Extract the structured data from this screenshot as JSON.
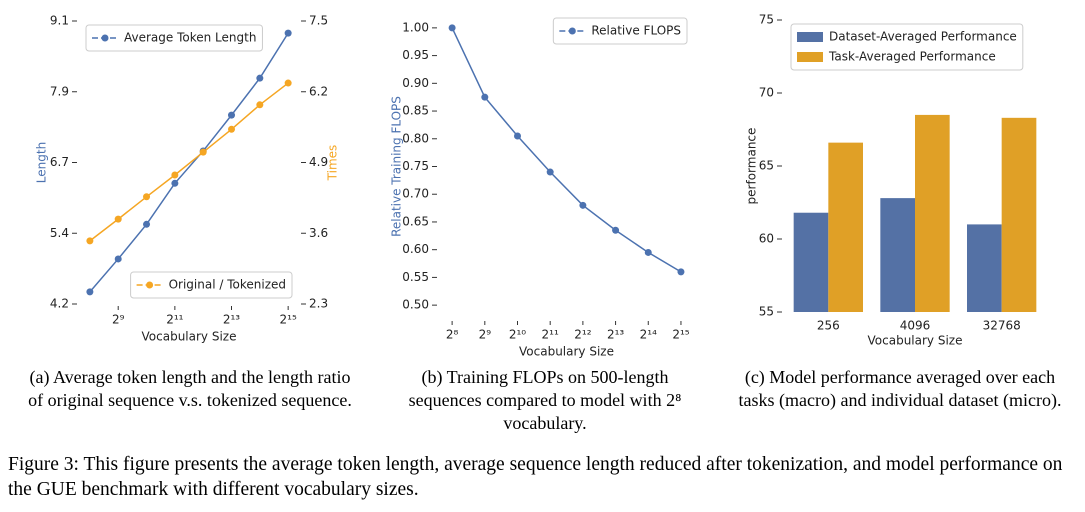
{
  "chart_data": [
    {
      "type": "line",
      "caption": "(a) Average token length and the length ratio of original sequence v.s. tokenized sequence.",
      "xlabel": "Vocabulary Size",
      "ylabel": "Length",
      "y2label": "Times",
      "x": [
        256,
        512,
        1024,
        2048,
        4096,
        8192,
        16384,
        32768
      ],
      "xscale": "log2",
      "xlim": [
        201,
        41700
      ],
      "xticks": [
        {
          "value": 512,
          "label": "2⁹"
        },
        {
          "value": 2048,
          "label": "2¹¹"
        },
        {
          "value": 8192,
          "label": "2¹³"
        },
        {
          "value": 32768,
          "label": "2¹⁵"
        }
      ],
      "ylim": [
        4.2,
        9.1
      ],
      "yticks": [
        4.2,
        {
          "value": 5.425,
          "label": "5.4"
        },
        {
          "value": 6.65,
          "label": "6.7"
        },
        {
          "value": 7.875,
          "label": "7.9"
        },
        9.1
      ],
      "y2lim": [
        2.3,
        7.5
      ],
      "y2ticks": [
        2.3,
        3.6,
        4.9,
        6.2,
        7.5
      ],
      "grid": false,
      "series": [
        {
          "name": "Average Token Length",
          "color": "#4c72b0",
          "legend": "upper left",
          "values": [
            4.41,
            4.98,
            5.58,
            6.29,
            6.85,
            7.47,
            8.11,
            8.89
          ]
        },
        {
          "name": "Original / Tokenized",
          "color": "#f5a623",
          "legend": "lower right",
          "axis": "y2",
          "values": [
            3.46,
            3.86,
            4.27,
            4.67,
            5.09,
            5.51,
            5.96,
            6.36
          ]
        }
      ]
    },
    {
      "type": "line",
      "caption": "(b) Training FLOPs on 500-length sequences compared to model with 2⁸ vocabulary.",
      "xlabel": "Vocabulary Size",
      "ylabel": "Relative Training FLOPS",
      "x": [
        256,
        512,
        1024,
        2048,
        4096,
        8192,
        16384,
        32768
      ],
      "xscale": "log2",
      "xlim": [
        198,
        42300
      ],
      "xticks": [
        {
          "value": 256,
          "label": "2⁸"
        },
        {
          "value": 512,
          "label": "2⁹"
        },
        {
          "value": 1024,
          "label": "2¹⁰"
        },
        {
          "value": 2048,
          "label": "2¹¹"
        },
        {
          "value": 4096,
          "label": "2¹²"
        },
        {
          "value": 8192,
          "label": "2¹³"
        },
        {
          "value": 16384,
          "label": "2¹⁴"
        },
        {
          "value": 32768,
          "label": "2¹⁵"
        }
      ],
      "ylim": [
        0.475,
        1.025
      ],
      "yticks": [
        {
          "value": 0.5,
          "label": "0.50"
        },
        0.55,
        {
          "value": 0.6,
          "label": "0.60"
        },
        0.65,
        {
          "value": 0.7,
          "label": "0.70"
        },
        0.75,
        {
          "value": 0.8,
          "label": "0.80"
        },
        0.85,
        {
          "value": 0.9,
          "label": "0.90"
        },
        0.95,
        {
          "value": 1.0,
          "label": "1.00"
        }
      ],
      "grid": false,
      "series": [
        {
          "name": "Relative FLOPS",
          "color": "#4c72b0",
          "legend": "upper right",
          "values": [
            1.0,
            0.875,
            0.805,
            0.74,
            0.68,
            0.635,
            0.595,
            0.56
          ]
        }
      ]
    },
    {
      "type": "bar",
      "caption": "(c) Model performance averaged over each tasks (macro) and individual dataset (micro).",
      "xlabel": "Vocabulary Size",
      "ylabel": "performance",
      "categories": [
        "256",
        "4096",
        "32768"
      ],
      "ylim": [
        55,
        75
      ],
      "yticks": [
        55,
        60,
        65,
        70,
        75
      ],
      "grid": false,
      "legend": "upper left",
      "series": [
        {
          "name": "Dataset-Averaged Performance",
          "color": "#5471a5",
          "values": [
            61.8,
            62.8,
            61.0
          ]
        },
        {
          "name": "Task-Averaged Performance",
          "color": "#e0a026",
          "values": [
            66.6,
            68.5,
            68.3
          ]
        }
      ]
    }
  ],
  "figure_caption": "Figure 3: This figure presents the average token length, average sequence length reduced after tokenization, and model performance on the GUE benchmark with different vocabulary sizes."
}
